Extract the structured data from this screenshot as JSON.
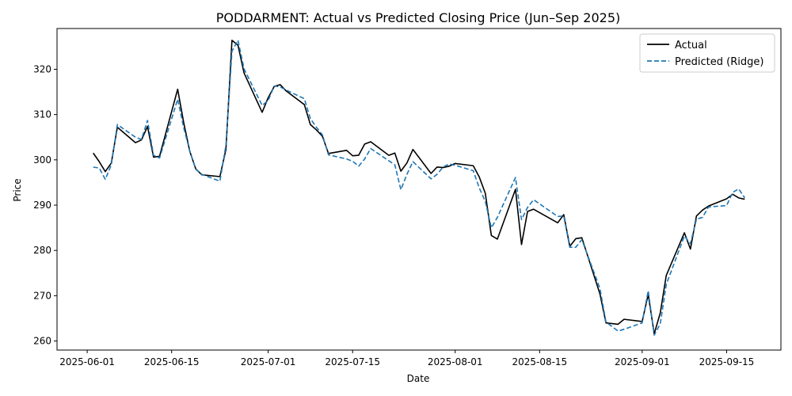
{
  "chart_data": {
    "type": "line",
    "title": "PODDARMENT: Actual vs Predicted Closing Price (Jun–Sep 2025)",
    "xlabel": "Date",
    "ylabel": "Price",
    "xlim": [
      "2025-05-27",
      "2025-09-24"
    ],
    "ylim": [
      258,
      329
    ],
    "x_ticks": [
      "2025-06-01",
      "2025-06-15",
      "2025-07-01",
      "2025-07-15",
      "2025-08-01",
      "2025-08-15",
      "2025-09-01",
      "2025-09-15"
    ],
    "y_ticks": [
      260,
      270,
      280,
      290,
      300,
      310,
      320
    ],
    "grid": false,
    "legend": "top-right",
    "x": [
      "2025-06-02",
      "2025-06-03",
      "2025-06-04",
      "2025-06-05",
      "2025-06-06",
      "2025-06-09",
      "2025-06-10",
      "2025-06-11",
      "2025-06-12",
      "2025-06-13",
      "2025-06-16",
      "2025-06-17",
      "2025-06-18",
      "2025-06-19",
      "2025-06-20",
      "2025-06-23",
      "2025-06-24",
      "2025-06-25",
      "2025-06-26",
      "2025-06-27",
      "2025-06-30",
      "2025-07-01",
      "2025-07-02",
      "2025-07-03",
      "2025-07-04",
      "2025-07-07",
      "2025-07-08",
      "2025-07-09",
      "2025-07-10",
      "2025-07-11",
      "2025-07-14",
      "2025-07-15",
      "2025-07-16",
      "2025-07-17",
      "2025-07-18",
      "2025-07-21",
      "2025-07-22",
      "2025-07-23",
      "2025-07-24",
      "2025-07-25",
      "2025-07-28",
      "2025-07-29",
      "2025-07-30",
      "2025-07-31",
      "2025-08-01",
      "2025-08-04",
      "2025-08-05",
      "2025-08-06",
      "2025-08-07",
      "2025-08-08",
      "2025-08-11",
      "2025-08-12",
      "2025-08-13",
      "2025-08-14",
      "2025-08-18",
      "2025-08-19",
      "2025-08-20",
      "2025-08-21",
      "2025-08-22",
      "2025-08-25",
      "2025-08-26",
      "2025-08-28",
      "2025-08-29",
      "2025-09-01",
      "2025-09-02",
      "2025-09-03",
      "2025-09-04",
      "2025-09-05",
      "2025-09-08",
      "2025-09-09",
      "2025-09-10",
      "2025-09-11",
      "2025-09-12",
      "2025-09-15",
      "2025-09-16",
      "2025-09-17",
      "2025-09-18"
    ],
    "series": [
      {
        "name": "Actual",
        "color": "#000000",
        "dash": "solid",
        "values": [
          301.5,
          299.6,
          297.4,
          299.3,
          307.2,
          303.8,
          304.4,
          307.4,
          300.6,
          300.8,
          315.6,
          308.2,
          301.9,
          298.0,
          296.7,
          296.3,
          302.3,
          326.4,
          325.3,
          319.2,
          310.5,
          313.7,
          316.2,
          316.6,
          315.2,
          312.2,
          307.8,
          306.6,
          305.2,
          301.4,
          302.1,
          300.9,
          301.0,
          303.5,
          304.0,
          301.0,
          301.5,
          297.5,
          299.3,
          302.3,
          297.0,
          298.4,
          298.3,
          298.6,
          299.2,
          298.7,
          296.2,
          292.6,
          283.3,
          282.5,
          293.5,
          281.3,
          288.6,
          289.1,
          286.1,
          287.9,
          280.9,
          282.6,
          282.8,
          270.4,
          264.0,
          263.7,
          264.8,
          264.3,
          270.3,
          261.6,
          266.2,
          274.5,
          283.9,
          280.3,
          287.6,
          288.9,
          289.8,
          291.4,
          292.4,
          291.6,
          291.3
        ]
      },
      {
        "name": "Predicted (Ridge)",
        "color": "#1f77b4",
        "dash": "dashed",
        "values": [
          298.4,
          298.2,
          295.7,
          298.9,
          307.8,
          305.0,
          304.5,
          308.7,
          301.0,
          300.4,
          313.4,
          307.1,
          302.0,
          297.9,
          296.8,
          295.3,
          303.2,
          324.0,
          326.4,
          320.1,
          312.0,
          313.1,
          316.3,
          316.1,
          315.4,
          313.5,
          309.1,
          307.2,
          305.5,
          301.1,
          300.2,
          299.7,
          298.6,
          300.2,
          302.5,
          299.8,
          298.9,
          293.4,
          296.8,
          299.6,
          295.8,
          296.8,
          298.4,
          299.1,
          298.8,
          297.6,
          293.8,
          290.8,
          285.0,
          287.3,
          296.1,
          286.8,
          289.5,
          291.2,
          287.5,
          287.6,
          280.7,
          280.7,
          282.4,
          271.6,
          264.2,
          262.2,
          262.6,
          264.0,
          271.1,
          261.3,
          263.8,
          272.5,
          283.2,
          281.5,
          286.9,
          287.3,
          289.6,
          289.9,
          292.8,
          293.6,
          291.6
        ]
      }
    ]
  }
}
